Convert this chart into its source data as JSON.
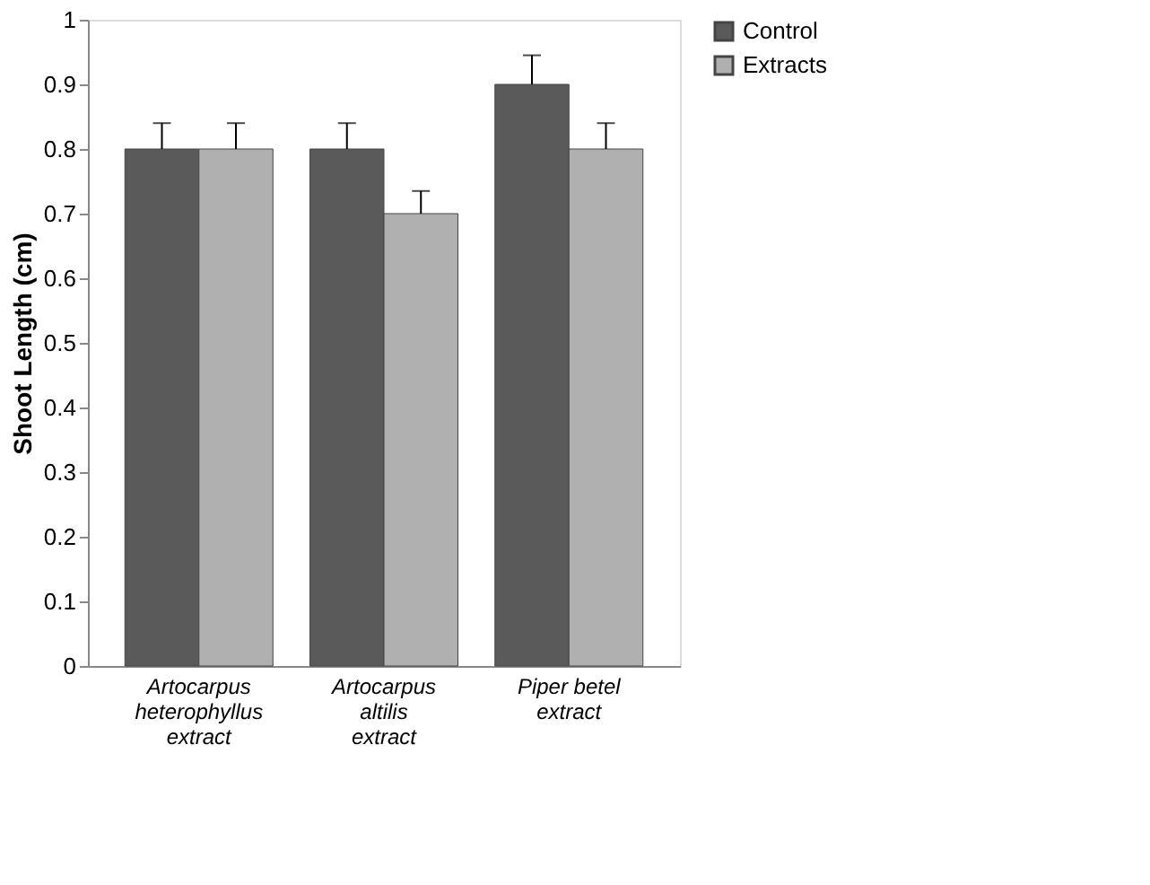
{
  "chart_data": {
    "type": "bar",
    "ylabel": "Shoot Length (cm)",
    "categories": [
      "Artocarpus heterophyllus extract",
      "Artocarpus altilis extract",
      "Piper betel extract"
    ],
    "series": [
      {
        "name": "Control",
        "color": "#5a5a5a",
        "values": [
          0.8,
          0.8,
          0.9
        ],
        "errors": [
          [
            0.8,
            0.84
          ],
          [
            0.8,
            0.84
          ],
          [
            0.9,
            0.945
          ]
        ]
      },
      {
        "name": "Extracts",
        "color": "#b0b0b0",
        "values": [
          0.8,
          0.7,
          0.8
        ],
        "errors": [
          [
            0.8,
            0.84
          ],
          [
            0.7,
            0.735
          ],
          [
            0.8,
            0.84
          ]
        ]
      }
    ],
    "ylim": [
      0,
      1
    ],
    "yticks": [
      0,
      0.1,
      0.2,
      0.3,
      0.4,
      0.5,
      0.6,
      0.7,
      0.8,
      0.9,
      1
    ],
    "grid": false,
    "legend": "right"
  }
}
